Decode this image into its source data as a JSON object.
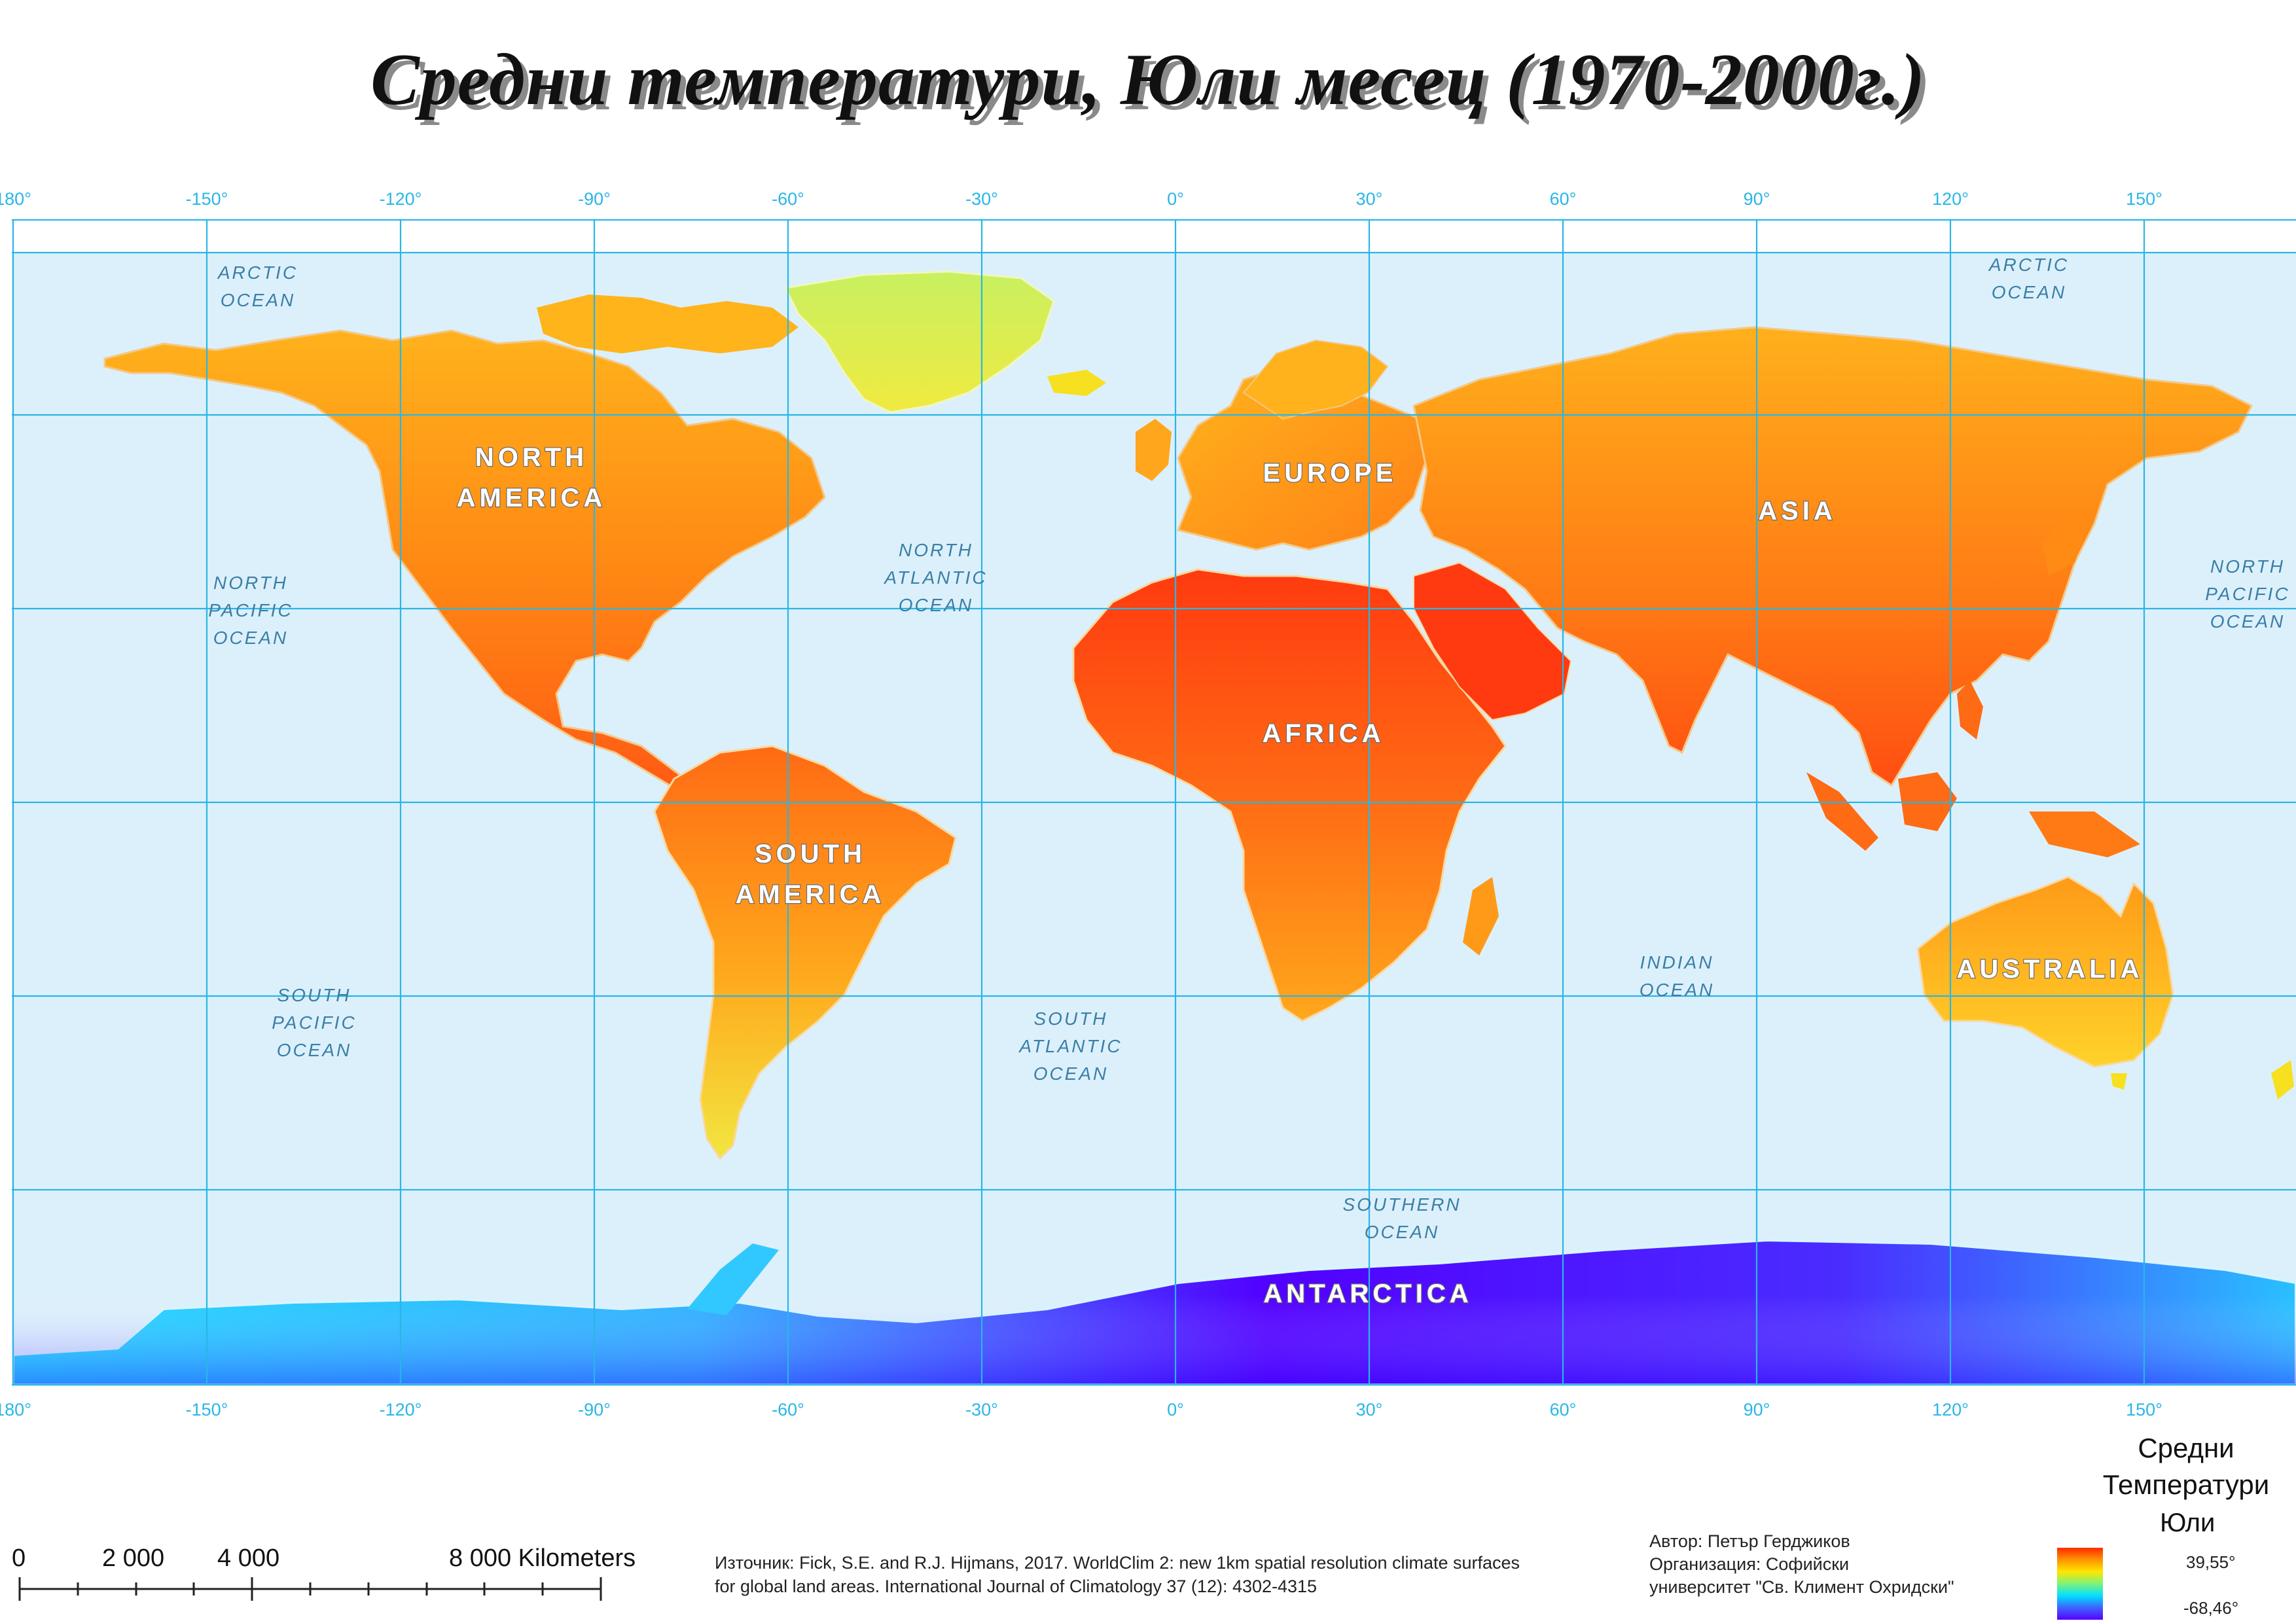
{
  "title": "Средни температури, Юли месец (1970-2000г.)",
  "longitude_labels": [
    "180°",
    "-150°",
    "-120°",
    "-90°",
    "-60°",
    "-30°",
    "0°",
    "30°",
    "60°",
    "90°",
    "120°",
    "150°"
  ],
  "oceans": [
    {
      "id": "arctic-w",
      "lines": [
        "ARCTIC",
        "OCEAN"
      ]
    },
    {
      "id": "arctic-e",
      "lines": [
        "ARCTIC",
        "OCEAN"
      ]
    },
    {
      "id": "npacific-w",
      "lines": [
        "NORTH",
        "PACIFIC",
        "OCEAN"
      ]
    },
    {
      "id": "npacific-e",
      "lines": [
        "NORTH",
        "PACIFIC",
        "OCEAN"
      ]
    },
    {
      "id": "natlantic",
      "lines": [
        "NORTH",
        "ATLANTIC",
        "OCEAN"
      ]
    },
    {
      "id": "spacific",
      "lines": [
        "SOUTH",
        "PACIFIC",
        "OCEAN"
      ]
    },
    {
      "id": "satlantic",
      "lines": [
        "SOUTH",
        "ATLANTIC",
        "OCEAN"
      ]
    },
    {
      "id": "indian",
      "lines": [
        "INDIAN",
        "OCEAN"
      ]
    },
    {
      "id": "southern",
      "lines": [
        "SOUTHERN",
        "OCEAN"
      ]
    }
  ],
  "continents": [
    {
      "id": "north-america",
      "lines": [
        "NORTH",
        "AMERICA"
      ]
    },
    {
      "id": "south-america",
      "lines": [
        "SOUTH",
        "AMERICA"
      ]
    },
    {
      "id": "europe",
      "lines": [
        "EUROPE"
      ]
    },
    {
      "id": "africa",
      "lines": [
        "AFRICA"
      ]
    },
    {
      "id": "asia",
      "lines": [
        "ASIA"
      ]
    },
    {
      "id": "australia",
      "lines": [
        "AUSTRALIA"
      ]
    },
    {
      "id": "antarctica",
      "lines": [
        "ANTARCTICA"
      ]
    }
  ],
  "scale_bar": {
    "labels": [
      "0",
      "2 000",
      "4 000",
      "8 000 Kilometers"
    ]
  },
  "source": {
    "line1": "Източник: Fick, S.E. and R.J. Hijmans, 2017. WorldClim 2: new 1km spatial resolution climate surfaces",
    "line2": "for global land areas. International Journal of Climatology 37 (12): 4302-4315"
  },
  "author": {
    "line1": "Автор: Петър Герджиков",
    "line2": "Организация: Софийски",
    "line3": "университет \"Св. Климент Охридски\""
  },
  "legend": {
    "title_line1": "Средни",
    "title_line2": "Температури",
    "subtitle": "Юли",
    "max": "39,55°",
    "min": "-68,46°"
  },
  "colors": {
    "ocean": "#dcf0fb",
    "grid": "#29b6e6",
    "hot": "#ff3a10",
    "warm": "#ff9a10",
    "mild": "#f6e020",
    "cold": "#3c63ff"
  }
}
